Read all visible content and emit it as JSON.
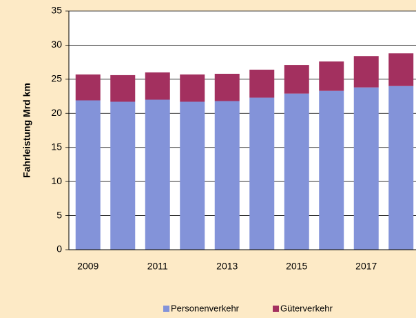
{
  "chart_data": {
    "type": "stacked_bar",
    "categories": [
      "2009",
      null,
      "2011",
      null,
      "2013",
      null,
      "2015",
      null,
      "2017",
      null
    ],
    "series": [
      {
        "name": "Personenverkehr",
        "color": "#8393d9",
        "values": [
          21.9,
          21.7,
          22.0,
          21.7,
          21.8,
          22.3,
          22.9,
          23.3,
          23.8,
          24.0
        ]
      },
      {
        "name": "Güterverkehr",
        "color": "#a3305f",
        "values": [
          3.8,
          3.9,
          4.0,
          4.0,
          4.0,
          4.1,
          4.2,
          4.3,
          4.6,
          4.8
        ]
      }
    ],
    "y_label": "Fahrleistung Mrd km",
    "ylim": [
      0,
      35
    ],
    "yticks": [
      0,
      5,
      10,
      15,
      20,
      25,
      30,
      35
    ],
    "grid": true,
    "legend": "bottom"
  }
}
